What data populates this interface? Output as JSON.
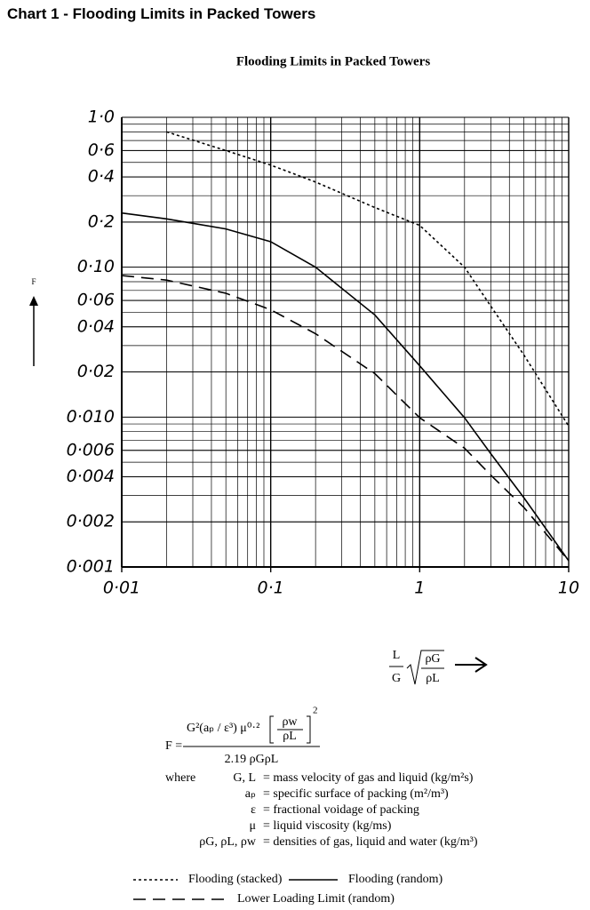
{
  "heading": "Chart 1 - Flooding Limits in Packed Towers",
  "chart_data": {
    "type": "line",
    "title": "Flooding Limits in Packed Towers",
    "y_label": "F",
    "x_label": {
      "numerator": "L",
      "denominator": "G",
      "root_numerator": "ρG",
      "root_denominator": "ρL"
    },
    "x": [
      0.01,
      0.02,
      0.05,
      0.1,
      0.2,
      0.5,
      1,
      2,
      3,
      5,
      10
    ],
    "series": [
      {
        "name": "Flooding (stacked)",
        "color": "#000000",
        "line_style": "dotted",
        "values": [
          null,
          0.8,
          0.6,
          0.48,
          0.37,
          0.25,
          0.19,
          0.1,
          0.055,
          0.026,
          0.0087
        ]
      },
      {
        "name": "Flooding (random)",
        "color": "#000000",
        "line_style": "solid",
        "values": [
          0.23,
          0.21,
          0.18,
          0.148,
          0.1,
          0.048,
          0.022,
          0.0099,
          0.0057,
          0.0029,
          0.0011
        ]
      },
      {
        "name": "Lower Loading Limit (random)",
        "color": "#000000",
        "line_style": "dashed",
        "values": [
          0.088,
          0.082,
          0.067,
          0.052,
          0.036,
          0.0195,
          0.0099,
          0.0062,
          0.0041,
          0.0025,
          0.0011
        ]
      }
    ],
    "xlim": [
      0.01,
      10
    ],
    "ylim": [
      0.001,
      1
    ],
    "log_x": true,
    "log_y": true,
    "grid": true,
    "xticks": [
      {
        "value": 0.01,
        "label": "0·01"
      },
      {
        "value": 0.1,
        "label": "0·1"
      },
      1,
      10
    ],
    "yticks": [
      {
        "value": 1,
        "label": "1·0"
      },
      {
        "value": 0.6,
        "label": "0·6"
      },
      {
        "value": 0.4,
        "label": "0·4"
      },
      {
        "value": 0.2,
        "label": "0·2"
      },
      {
        "value": 0.1,
        "label": "0·10"
      },
      {
        "value": 0.06,
        "label": "0·06"
      },
      {
        "value": 0.04,
        "label": "0·04"
      },
      {
        "value": 0.02,
        "label": "0·02"
      },
      {
        "value": 0.01,
        "label": "0·010"
      },
      {
        "value": 0.006,
        "label": "0·006"
      },
      {
        "value": 0.004,
        "label": "0·004"
      },
      {
        "value": 0.002,
        "label": "0·002"
      },
      {
        "value": 0.001,
        "label": "0·001"
      }
    ]
  },
  "formula": {
    "lhs": "F =",
    "numerator": "G²(aₚ / ε³) μ⁰·²",
    "bracket_numerator": "ρw",
    "bracket_denominator": "ρL",
    "bracket_power": "2",
    "denominator": "2.19 ρGρL",
    "where": "where",
    "definitions": [
      {
        "symbol": "G, L",
        "text": "= mass velocity of gas and liquid (kg/m²s)"
      },
      {
        "symbol": "aₚ",
        "text": "= specific surface of packing (m²/m³)"
      },
      {
        "symbol": "ε",
        "text": "= fractional voidage of packing"
      },
      {
        "symbol": "μ",
        "text": "= liquid viscosity (kg/ms)"
      },
      {
        "symbol": "ρG, ρL, ρw",
        "text": "= densities of gas, liquid and water (kg/m³)"
      }
    ]
  }
}
